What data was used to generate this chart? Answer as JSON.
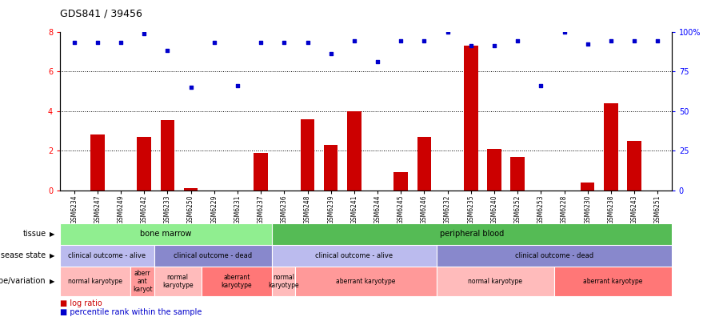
{
  "title": "GDS841 / 39456",
  "samples": [
    "GSM6234",
    "GSM6247",
    "GSM6249",
    "GSM6242",
    "GSM6233",
    "GSM6250",
    "GSM6229",
    "GSM6231",
    "GSM6237",
    "GSM6236",
    "GSM6248",
    "GSM6239",
    "GSM6241",
    "GSM6244",
    "GSM6245",
    "GSM6246",
    "GSM6232",
    "GSM6235",
    "GSM6240",
    "GSM6252",
    "GSM6253",
    "GSM6228",
    "GSM6230",
    "GSM6238",
    "GSM6243",
    "GSM6251"
  ],
  "log_ratio": [
    0.0,
    2.8,
    0.0,
    2.7,
    3.55,
    0.1,
    0.0,
    0.0,
    1.9,
    0.0,
    3.6,
    2.3,
    4.0,
    0.0,
    0.9,
    2.7,
    0.0,
    7.3,
    2.1,
    1.7,
    0.0,
    0.0,
    0.4,
    4.4,
    2.5,
    0.0
  ],
  "percentile_pct": [
    93,
    93,
    93,
    99,
    88,
    65,
    93,
    66,
    93,
    93,
    93,
    86,
    94,
    81,
    94,
    94,
    100,
    91,
    91,
    94,
    66,
    100,
    92,
    94,
    94,
    94
  ],
  "bar_color": "#cc0000",
  "dot_color": "#0000cc",
  "ylim_left": [
    0,
    8
  ],
  "ylim_right": [
    0,
    100
  ],
  "yticks_left": [
    0,
    2,
    4,
    6,
    8
  ],
  "yticks_right": [
    0,
    25,
    50,
    75,
    100
  ],
  "ytick_labels_right": [
    "0",
    "25",
    "50",
    "75",
    "100%"
  ],
  "grid_lines": [
    2,
    4,
    6
  ],
  "tissue_regions": [
    {
      "label": "bone marrow",
      "start": 0,
      "end": 8,
      "color": "#90ee90"
    },
    {
      "label": "peripheral blood",
      "start": 9,
      "end": 25,
      "color": "#55bb55"
    }
  ],
  "disease_regions": [
    {
      "label": "clinical outcome - alive",
      "start": 0,
      "end": 3,
      "color": "#bbbbee"
    },
    {
      "label": "clinical outcome - dead",
      "start": 4,
      "end": 8,
      "color": "#8888cc"
    },
    {
      "label": "clinical outcome - alive",
      "start": 9,
      "end": 15,
      "color": "#bbbbee"
    },
    {
      "label": "clinical outcome - dead",
      "start": 16,
      "end": 25,
      "color": "#8888cc"
    }
  ],
  "geno_regions": [
    {
      "label": "normal karyotype",
      "start": 0,
      "end": 2,
      "color": "#ffbbbb"
    },
    {
      "label": "aberr\nant\nkaryot",
      "start": 3,
      "end": 3,
      "color": "#ff9999"
    },
    {
      "label": "normal\nkaryotype",
      "start": 4,
      "end": 5,
      "color": "#ffbbbb"
    },
    {
      "label": "aberrant\nkaryotype",
      "start": 6,
      "end": 8,
      "color": "#ff7777"
    },
    {
      "label": "normal\nkaryotype",
      "start": 9,
      "end": 9,
      "color": "#ffbbbb"
    },
    {
      "label": "aberrant karyotype",
      "start": 10,
      "end": 15,
      "color": "#ff9999"
    },
    {
      "label": "normal karyotype",
      "start": 16,
      "end": 20,
      "color": "#ffbbbb"
    },
    {
      "label": "aberrant karyotype",
      "start": 21,
      "end": 25,
      "color": "#ff7777"
    }
  ],
  "row_labels": [
    "tissue",
    "disease state",
    "genotype/variation"
  ]
}
